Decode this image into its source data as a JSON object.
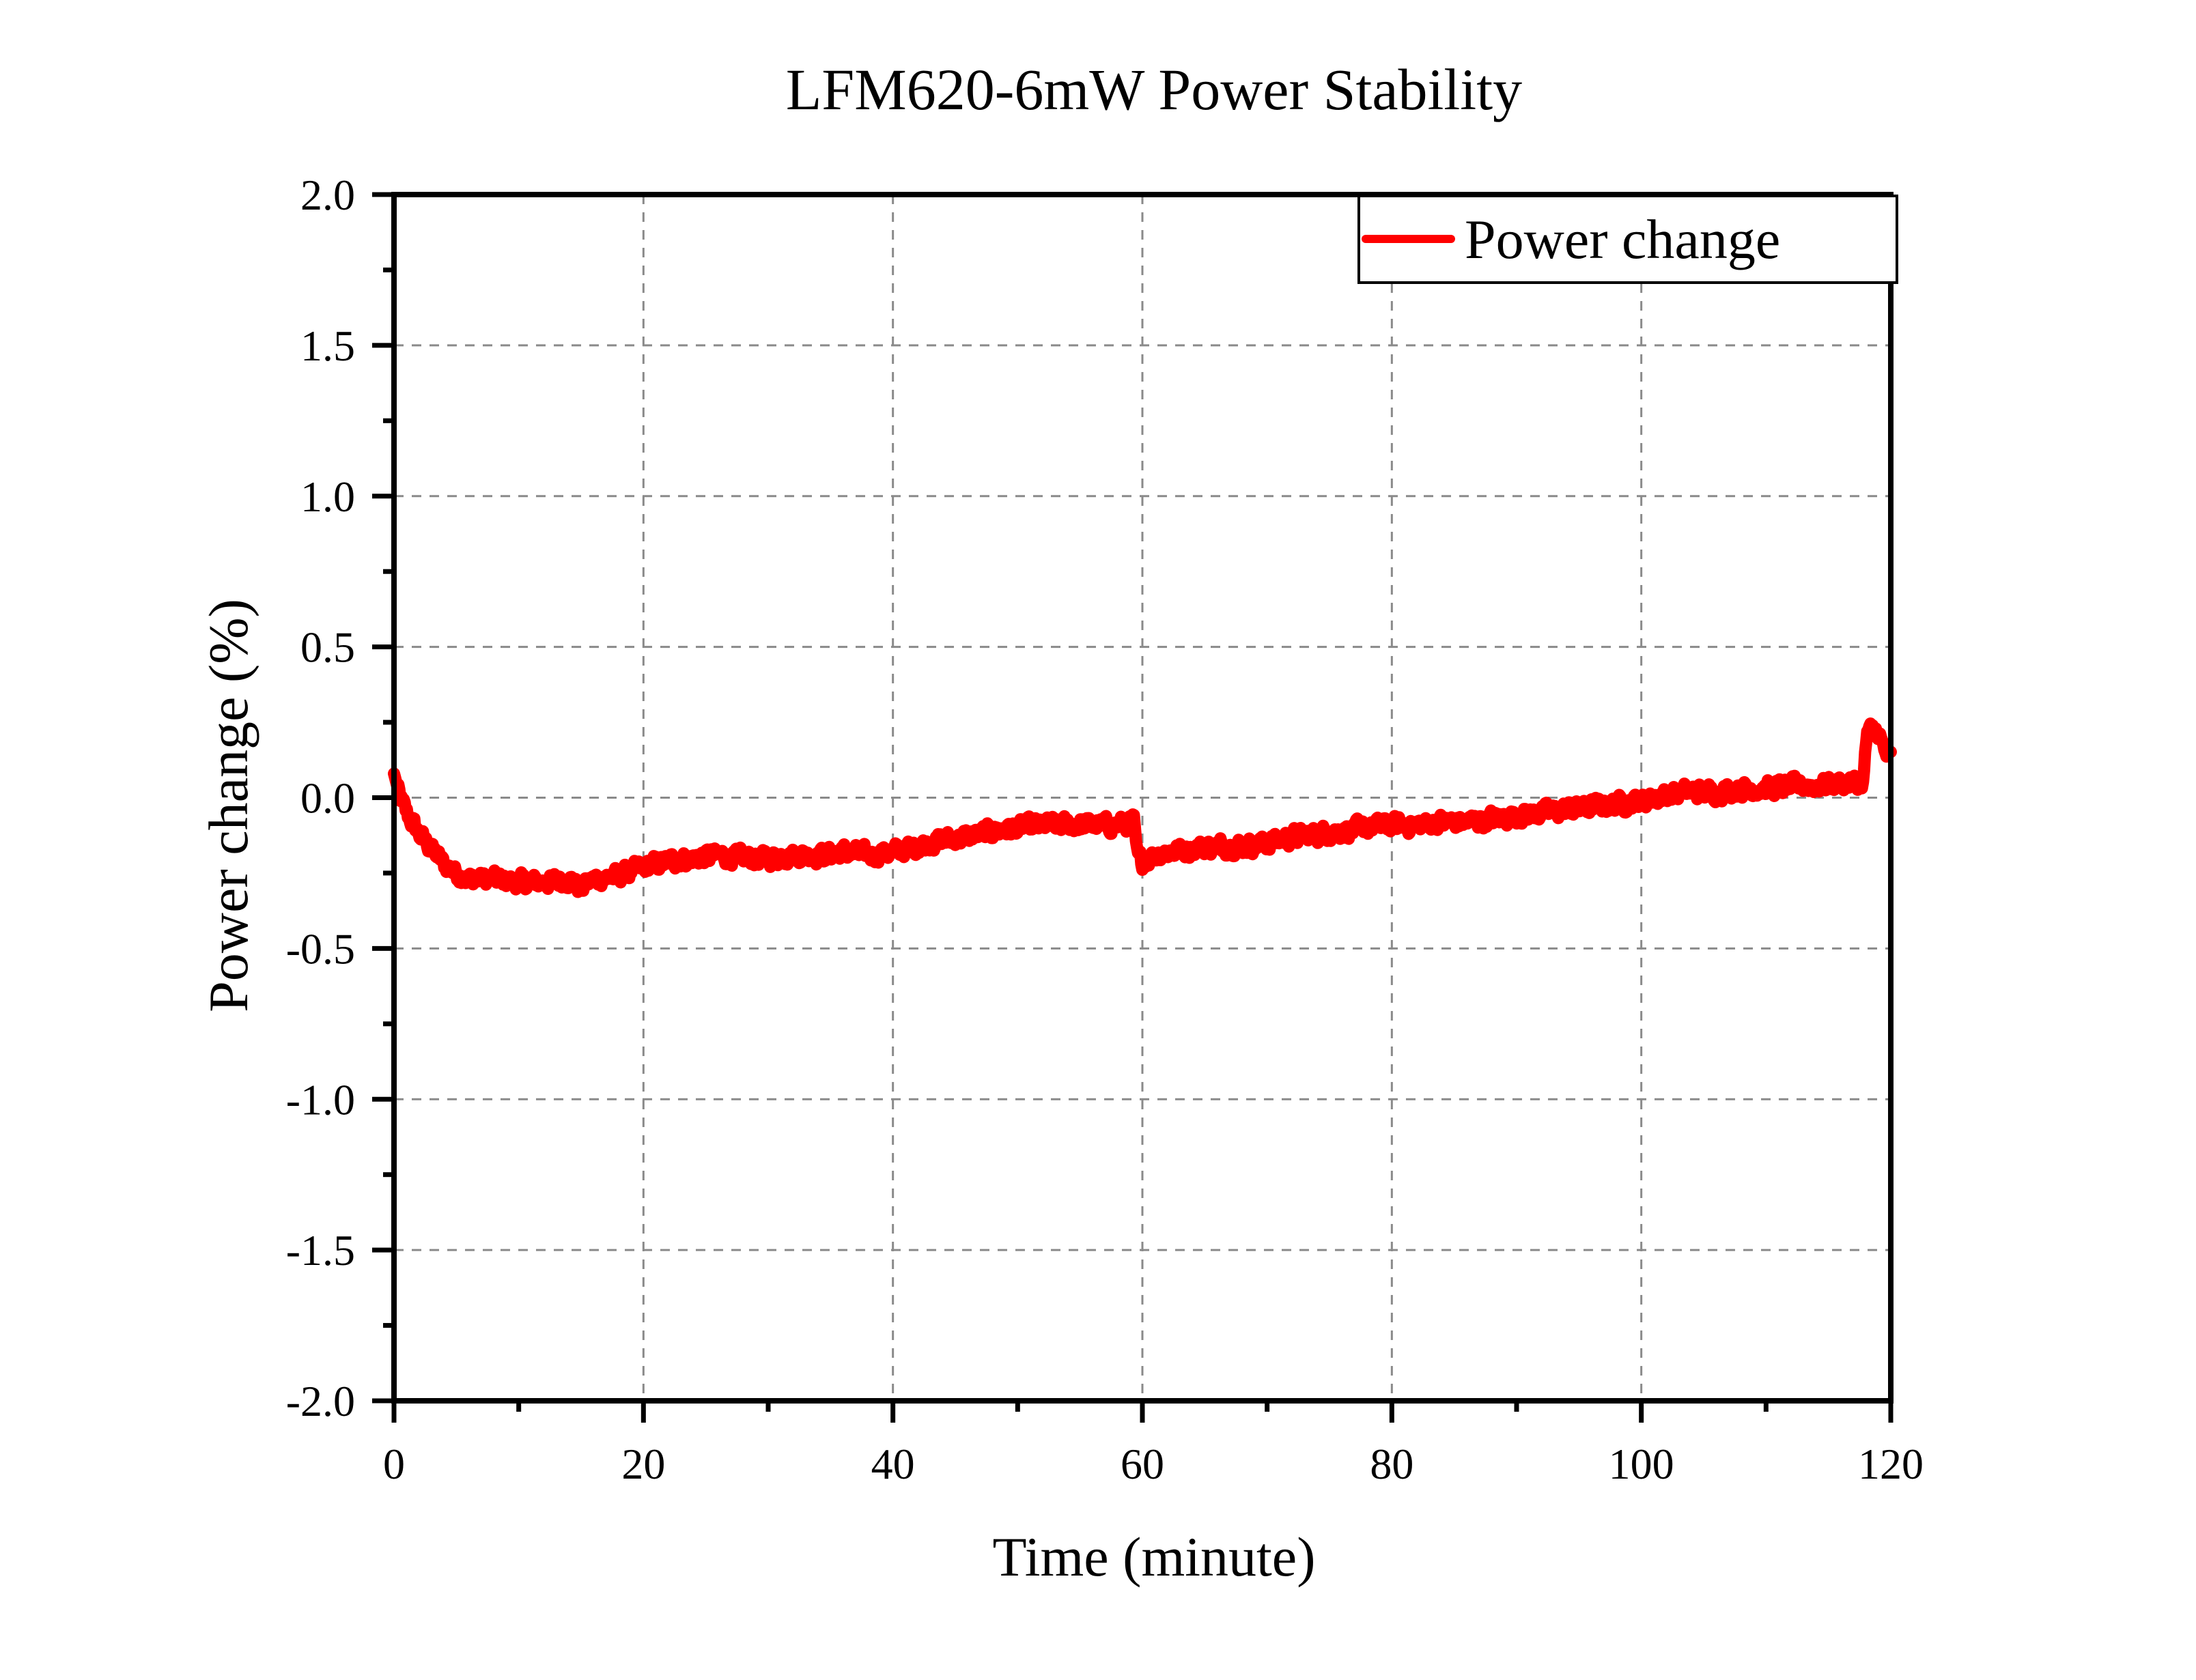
{
  "chart_data": {
    "type": "line",
    "title": "LFM620-6mW Power Stability",
    "xlabel": "Time (minute)",
    "ylabel": "Power change (%)",
    "xlim": [
      0,
      120
    ],
    "ylim": [
      -2.0,
      2.0
    ],
    "x_ticks": [
      0,
      20,
      40,
      60,
      80,
      100,
      120
    ],
    "x_tick_labels": [
      "0",
      "20",
      "40",
      "60",
      "80",
      "100",
      "120"
    ],
    "x_minor_step": 10,
    "y_ticks": [
      2.0,
      1.5,
      1.0,
      0.5,
      0.0,
      -0.5,
      -1.0,
      -1.5,
      -2.0
    ],
    "y_tick_labels": [
      "2.0",
      "1.5",
      "1.0",
      "0.5",
      "0.0",
      "-0.5",
      "-1.0",
      "-1.5",
      "-2.0"
    ],
    "y_minor_step": 0.25,
    "grid": true,
    "legend": {
      "position": "top-right",
      "entries": [
        "Power change"
      ]
    },
    "series": [
      {
        "name": "Power change",
        "color": "#ff0000",
        "noise_amplitude": 0.04,
        "x": [
          0,
          0.5,
          1,
          2,
          3,
          4,
          5,
          6,
          8,
          10,
          12,
          14,
          15,
          16,
          18,
          20,
          22,
          24,
          26,
          28,
          30,
          32,
          34,
          36,
          38,
          40,
          42,
          44,
          46,
          48,
          50,
          52,
          54,
          56,
          58,
          59.3,
          59.6,
          60,
          61,
          62,
          64,
          66,
          68,
          70,
          72,
          74,
          76,
          78,
          80,
          82,
          84,
          86,
          88,
          90,
          92,
          94,
          96,
          98,
          100,
          102,
          104,
          106,
          108,
          110,
          112,
          114,
          116,
          117.8,
          118.1,
          119,
          119.5,
          120
        ],
        "y": [
          0.08,
          0.0,
          -0.05,
          -0.12,
          -0.17,
          -0.22,
          -0.25,
          -0.27,
          -0.27,
          -0.28,
          -0.28,
          -0.27,
          -0.3,
          -0.27,
          -0.26,
          -0.23,
          -0.21,
          -0.2,
          -0.19,
          -0.2,
          -0.2,
          -0.19,
          -0.19,
          -0.18,
          -0.19,
          -0.18,
          -0.16,
          -0.14,
          -0.13,
          -0.11,
          -0.1,
          -0.09,
          -0.09,
          -0.09,
          -0.09,
          -0.08,
          -0.2,
          -0.21,
          -0.19,
          -0.18,
          -0.17,
          -0.16,
          -0.16,
          -0.15,
          -0.13,
          -0.12,
          -0.11,
          -0.1,
          -0.09,
          -0.09,
          -0.08,
          -0.08,
          -0.07,
          -0.06,
          -0.05,
          -0.04,
          -0.03,
          -0.02,
          -0.01,
          0.01,
          0.02,
          0.02,
          0.03,
          0.03,
          0.04,
          0.04,
          0.05,
          0.05,
          0.22,
          0.22,
          0.15,
          0.13
        ]
      }
    ]
  }
}
